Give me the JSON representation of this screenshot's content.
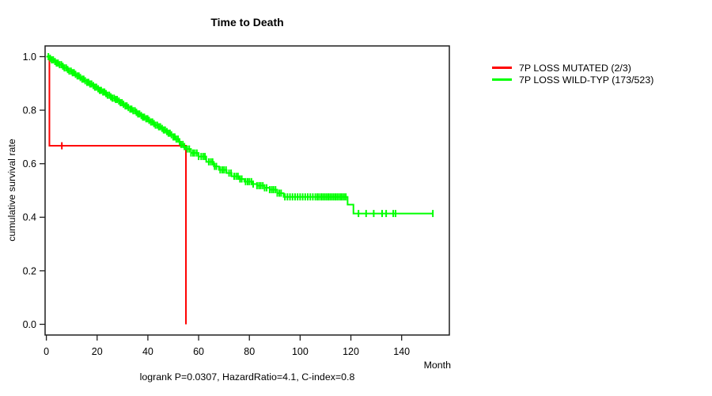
{
  "chart_data": {
    "type": "line",
    "subtype": "kaplan_meier_step",
    "title": "Time to Death",
    "xlabel": "Month",
    "ylabel": "cumulative survival rate",
    "footnote": "logrank P=0.0307, HazardRatio=4.1, C-index=0.8",
    "grid": false,
    "legend_position": "right-outside",
    "axis_color": "#1f1f1f",
    "xlim": [
      -0.5,
      158.8
    ],
    "ylim": [
      -0.04,
      1.04
    ],
    "x_ticks": [
      0,
      20,
      40,
      60,
      80,
      100,
      120,
      140
    ],
    "y_ticks": [
      {
        "value": 0.0,
        "label": "0.0"
      },
      {
        "value": 0.2,
        "label": "0.2"
      },
      {
        "value": 0.4,
        "label": "0.4"
      },
      {
        "value": 0.6,
        "label": "0.6"
      },
      {
        "value": 0.8,
        "label": "0.8"
      },
      {
        "value": 1.0,
        "label": "1.0"
      }
    ],
    "series": [
      {
        "name": "7P LOSS MUTATED (2/3)",
        "color": "#ff0000",
        "step_points": [
          [
            0,
            1.0
          ],
          [
            1.2,
            1.0
          ],
          [
            1.2,
            0.667
          ],
          [
            55,
            0.667
          ],
          [
            55,
            0.0
          ]
        ],
        "censor_months": [
          6.1
        ]
      },
      {
        "name": "7P LOSS WILD-TYP (173/523)",
        "color": "#00ff00",
        "step_points": [
          [
            0,
            1.0
          ],
          [
            1,
            0.994
          ],
          [
            2,
            0.988
          ],
          [
            3,
            0.982
          ],
          [
            4,
            0.976
          ],
          [
            5,
            0.97
          ],
          [
            6,
            0.964
          ],
          [
            7,
            0.958
          ],
          [
            8,
            0.952
          ],
          [
            9,
            0.946
          ],
          [
            10,
            0.94
          ],
          [
            11,
            0.934
          ],
          [
            12,
            0.928
          ],
          [
            13,
            0.922
          ],
          [
            14,
            0.916
          ],
          [
            15,
            0.91
          ],
          [
            16,
            0.904
          ],
          [
            17,
            0.898
          ],
          [
            18,
            0.892
          ],
          [
            19,
            0.886
          ],
          [
            20,
            0.88
          ],
          [
            21,
            0.874
          ],
          [
            22,
            0.868
          ],
          [
            23,
            0.862
          ],
          [
            24,
            0.856
          ],
          [
            25,
            0.85
          ],
          [
            26,
            0.845
          ],
          [
            27,
            0.84
          ],
          [
            28,
            0.834
          ],
          [
            29,
            0.828
          ],
          [
            30,
            0.822
          ],
          [
            31,
            0.816
          ],
          [
            32,
            0.81
          ],
          [
            33,
            0.804
          ],
          [
            34,
            0.798
          ],
          [
            35,
            0.792
          ],
          [
            36,
            0.786
          ],
          [
            37,
            0.78
          ],
          [
            38,
            0.774
          ],
          [
            39,
            0.768
          ],
          [
            40,
            0.762
          ],
          [
            41,
            0.756
          ],
          [
            42,
            0.75
          ],
          [
            43,
            0.744
          ],
          [
            44,
            0.738
          ],
          [
            45,
            0.732
          ],
          [
            46,
            0.726
          ],
          [
            47,
            0.72
          ],
          [
            48,
            0.714
          ],
          [
            49,
            0.708
          ],
          [
            50,
            0.7
          ],
          [
            51,
            0.692
          ],
          [
            52,
            0.682
          ],
          [
            53,
            0.672
          ],
          [
            54,
            0.664
          ],
          [
            55,
            0.655
          ],
          [
            57,
            0.64
          ],
          [
            60,
            0.627
          ],
          [
            63,
            0.607
          ],
          [
            66,
            0.59
          ],
          [
            68,
            0.577
          ],
          [
            71,
            0.565
          ],
          [
            73,
            0.553
          ],
          [
            76,
            0.543
          ],
          [
            78,
            0.533
          ],
          [
            81,
            0.524
          ],
          [
            83,
            0.518
          ],
          [
            86,
            0.51
          ],
          [
            88,
            0.503
          ],
          [
            91,
            0.49
          ],
          [
            93.5,
            0.476
          ],
          [
            118.7,
            0.447
          ],
          [
            121,
            0.414
          ],
          [
            152.3,
            0.414
          ]
        ],
        "censor_months": [
          0.8,
          1.5,
          2.1,
          2.7,
          3.4,
          4,
          4.6,
          5.2,
          5.9,
          6.5,
          7.1,
          7.8,
          8.4,
          9,
          9.7,
          10.3,
          10.9,
          11.5,
          12.2,
          12.8,
          13.4,
          14.1,
          14.7,
          15.3,
          16,
          16.6,
          17.2,
          17.8,
          18.5,
          19.1,
          19.7,
          20.4,
          21,
          21.6,
          22.3,
          22.9,
          23.5,
          24.1,
          24.8,
          25.4,
          26,
          26.7,
          27.3,
          27.9,
          28.6,
          29.2,
          29.8,
          30.4,
          31.1,
          31.7,
          32.3,
          33,
          33.6,
          34.2,
          34.9,
          35.5,
          36.1,
          36.7,
          37.4,
          38,
          38.6,
          39.3,
          39.9,
          40.5,
          41.2,
          41.8,
          42.4,
          43,
          43.7,
          44.3,
          44.9,
          45.6,
          46.2,
          46.8,
          47.5,
          48.1,
          48.7,
          49.3,
          50,
          50.6,
          51.2,
          51.9,
          52.5,
          53.1,
          53.8,
          54.4,
          55.5,
          56.3,
          57,
          57.8,
          58.5,
          59.3,
          60,
          61,
          61.8,
          62.5,
          64,
          64.8,
          65.5,
          66.3,
          67,
          68.5,
          69.3,
          70,
          70.8,
          72,
          72.8,
          74,
          74.8,
          75.5,
          76.3,
          77,
          78.5,
          79.3,
          80,
          80.8,
          81.5,
          83,
          83.8,
          84.5,
          85.3,
          86,
          86.8,
          88,
          88.8,
          89.5,
          90.3,
          91,
          91.8,
          92.5,
          94,
          95,
          96,
          97,
          98,
          99,
          100,
          101,
          102,
          103,
          104,
          105,
          106,
          106.8,
          107.5,
          108.3,
          109,
          109.7,
          110.4,
          111.1,
          111.8,
          112.5,
          113.2,
          113.9,
          114.6,
          115.3,
          116,
          116.6,
          117.3,
          118,
          123,
          126,
          129,
          132.3,
          133.9,
          136.7,
          137.6,
          152.3
        ]
      }
    ]
  }
}
